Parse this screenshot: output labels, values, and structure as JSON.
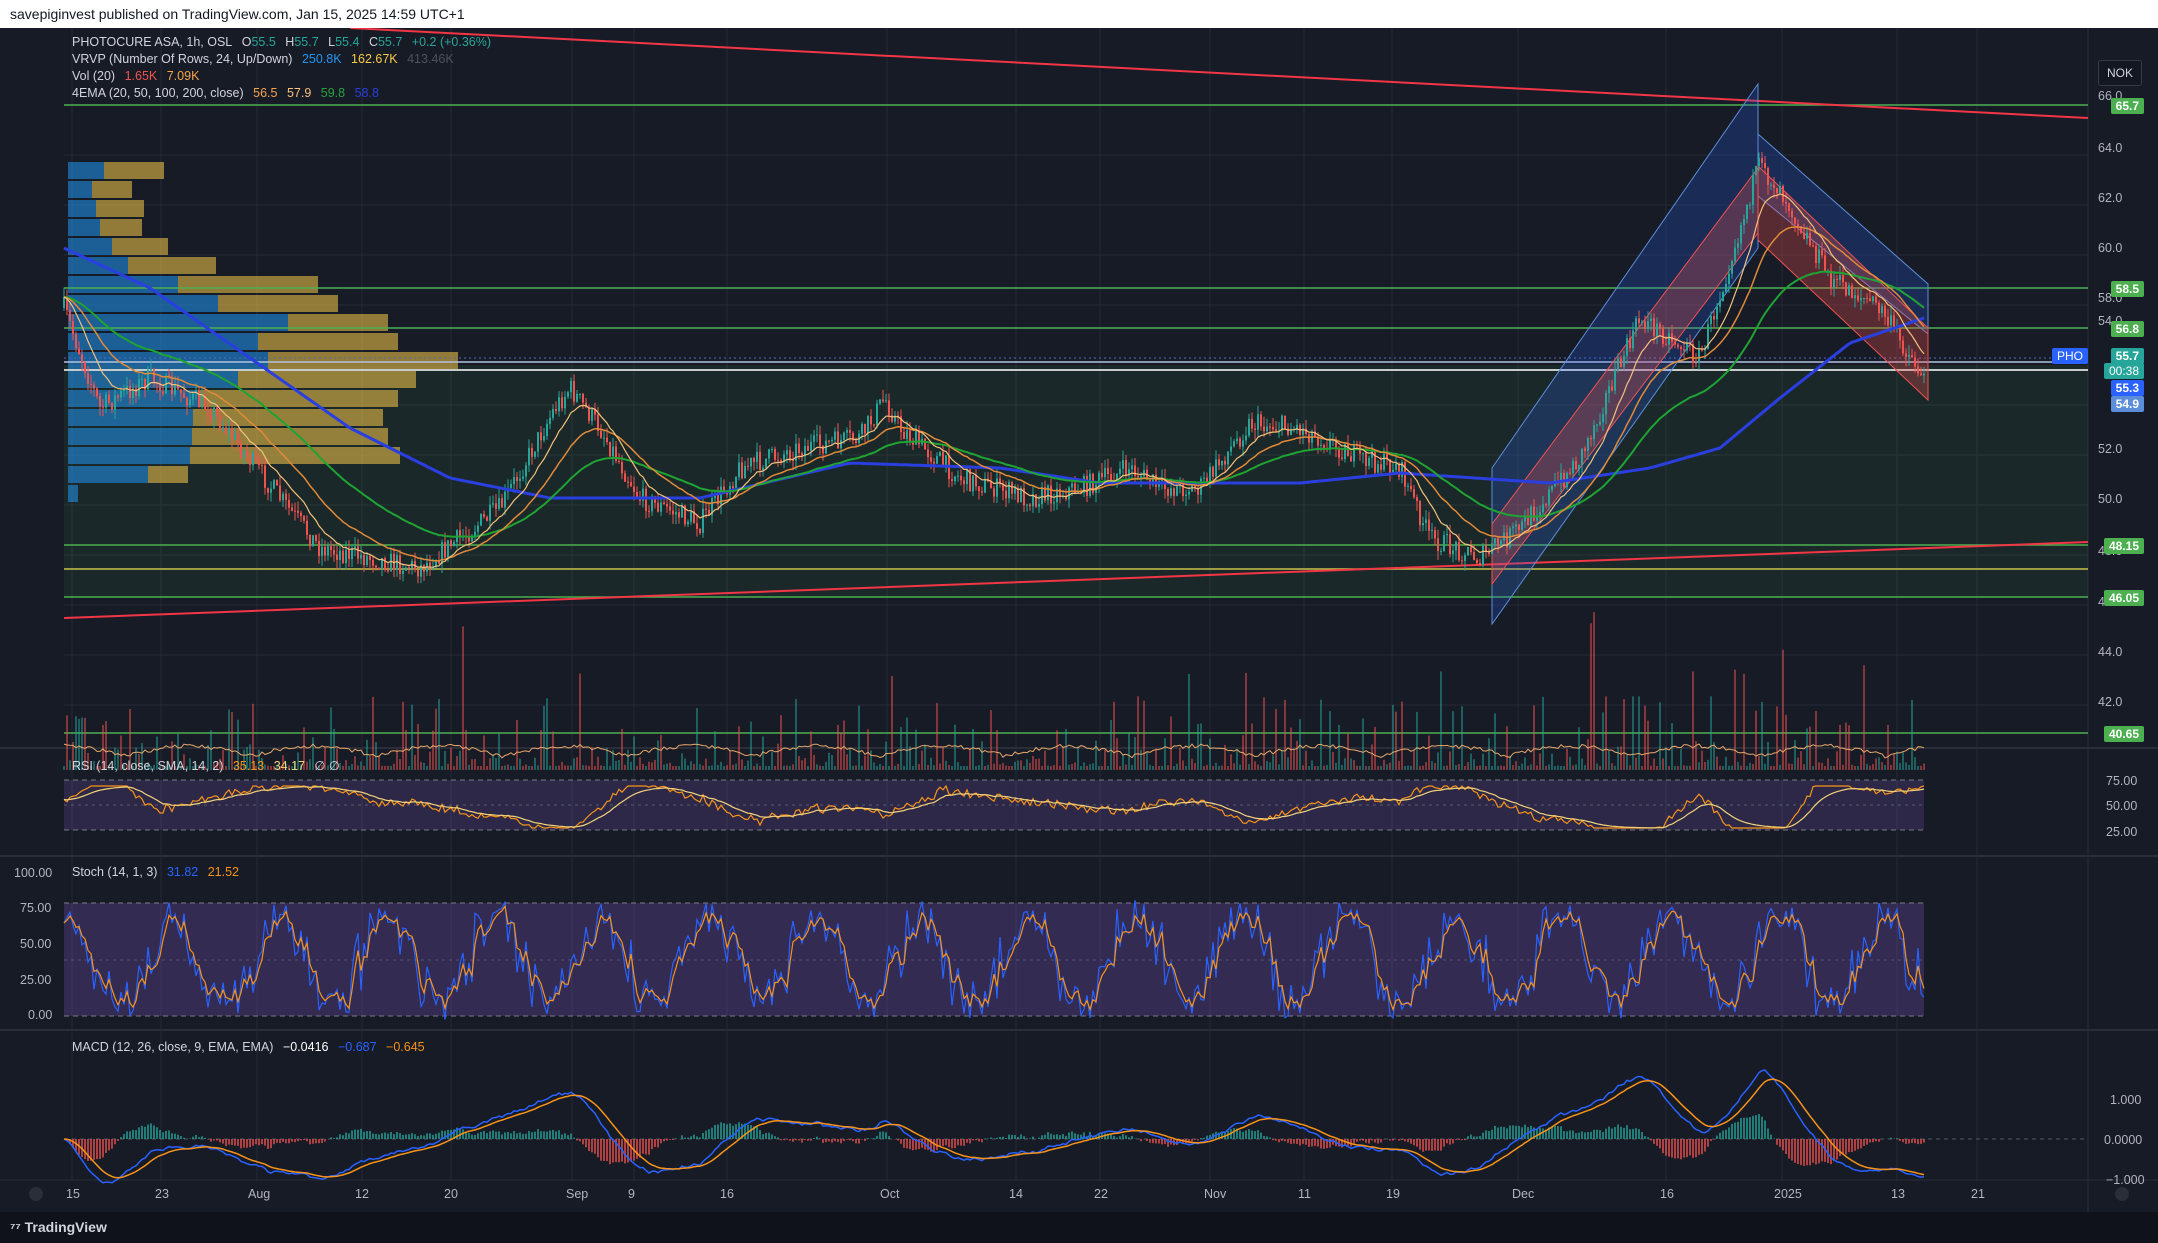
{
  "publish_line": "savepiginvest published on TradingView.com, Jan 15, 2025 14:59 UTC+1",
  "currency_button": "NOK",
  "brand": "TradingView",
  "legend": {
    "symbol": "PHOTOCURE ASA, 1h, OSL",
    "o_lbl": "O",
    "o": "55.5",
    "h_lbl": "H",
    "h": "55.7",
    "l_lbl": "L",
    "l": "55.4",
    "c_lbl": "C",
    "c": "55.7",
    "chg": "+0.2 (+0.36%)",
    "vrvp": "VRVP (Number Of Rows, 24, Up/Down)",
    "vrvp_up": "250.8K",
    "vrvp_down": "162.67K",
    "vrvp_total": "413.46K",
    "vol": "Vol (20)",
    "vol_a": "1.65K",
    "vol_b": "7.09K",
    "ema": "4EMA (20, 50, 100, 200, close)",
    "ema20": "56.5",
    "ema50": "57.9",
    "ema100": "59.8",
    "ema200": "58.8",
    "rsi": "RSI (14, close, SMA, 14, 2)",
    "rsi_a": "35.13",
    "rsi_b": "34.17",
    "rsi_c": "∅ ∅",
    "stoch": "Stoch (14, 1, 3)",
    "stoch_k": "31.82",
    "stoch_d": "21.52",
    "macd": "MACD (12, 26, close, 9, EMA, EMA)",
    "macd_a": "−0.0416",
    "macd_b": "−0.687",
    "macd_c": "−0.645"
  },
  "price_axis": [
    "66.0",
    "64.0",
    "62.0",
    "60.0",
    "58.0",
    "54.0",
    "52.0",
    "50.0",
    "48.0",
    "46.0",
    "44.0",
    "42.0"
  ],
  "price_tags": {
    "t657": "65.7",
    "t585": "58.5",
    "t568": "56.8",
    "pho": "PHO",
    "t557": "55.7",
    "t0038": "00:38",
    "t553": "55.3",
    "t549": "54.9",
    "t4815": "48.15",
    "t4605": "46.05",
    "t4065": "40.65"
  },
  "rsi_axis": [
    "75.00",
    "50.00",
    "25.00"
  ],
  "stoch_axis": [
    "100.00",
    "75.00",
    "50.00",
    "25.00",
    "0.00"
  ],
  "macd_axis": [
    "1.000",
    "0.0000",
    "−1.000"
  ],
  "time_axis": [
    "15",
    "23",
    "Aug",
    "12",
    "20",
    "Sep",
    "9",
    "16",
    "Oct",
    "14",
    "22",
    "Nov",
    "11",
    "19",
    "Dec",
    "16",
    "2025",
    "13",
    "21"
  ],
  "colors": {
    "background": "#171b26",
    "up": "#26a69a",
    "down": "#ef5350",
    "ema20": "#f7a34a",
    "ema50": "#27a33c",
    "ema200": "#2a3fe0",
    "trend_red": "#f23645",
    "level_green": "#4caf50"
  }
}
